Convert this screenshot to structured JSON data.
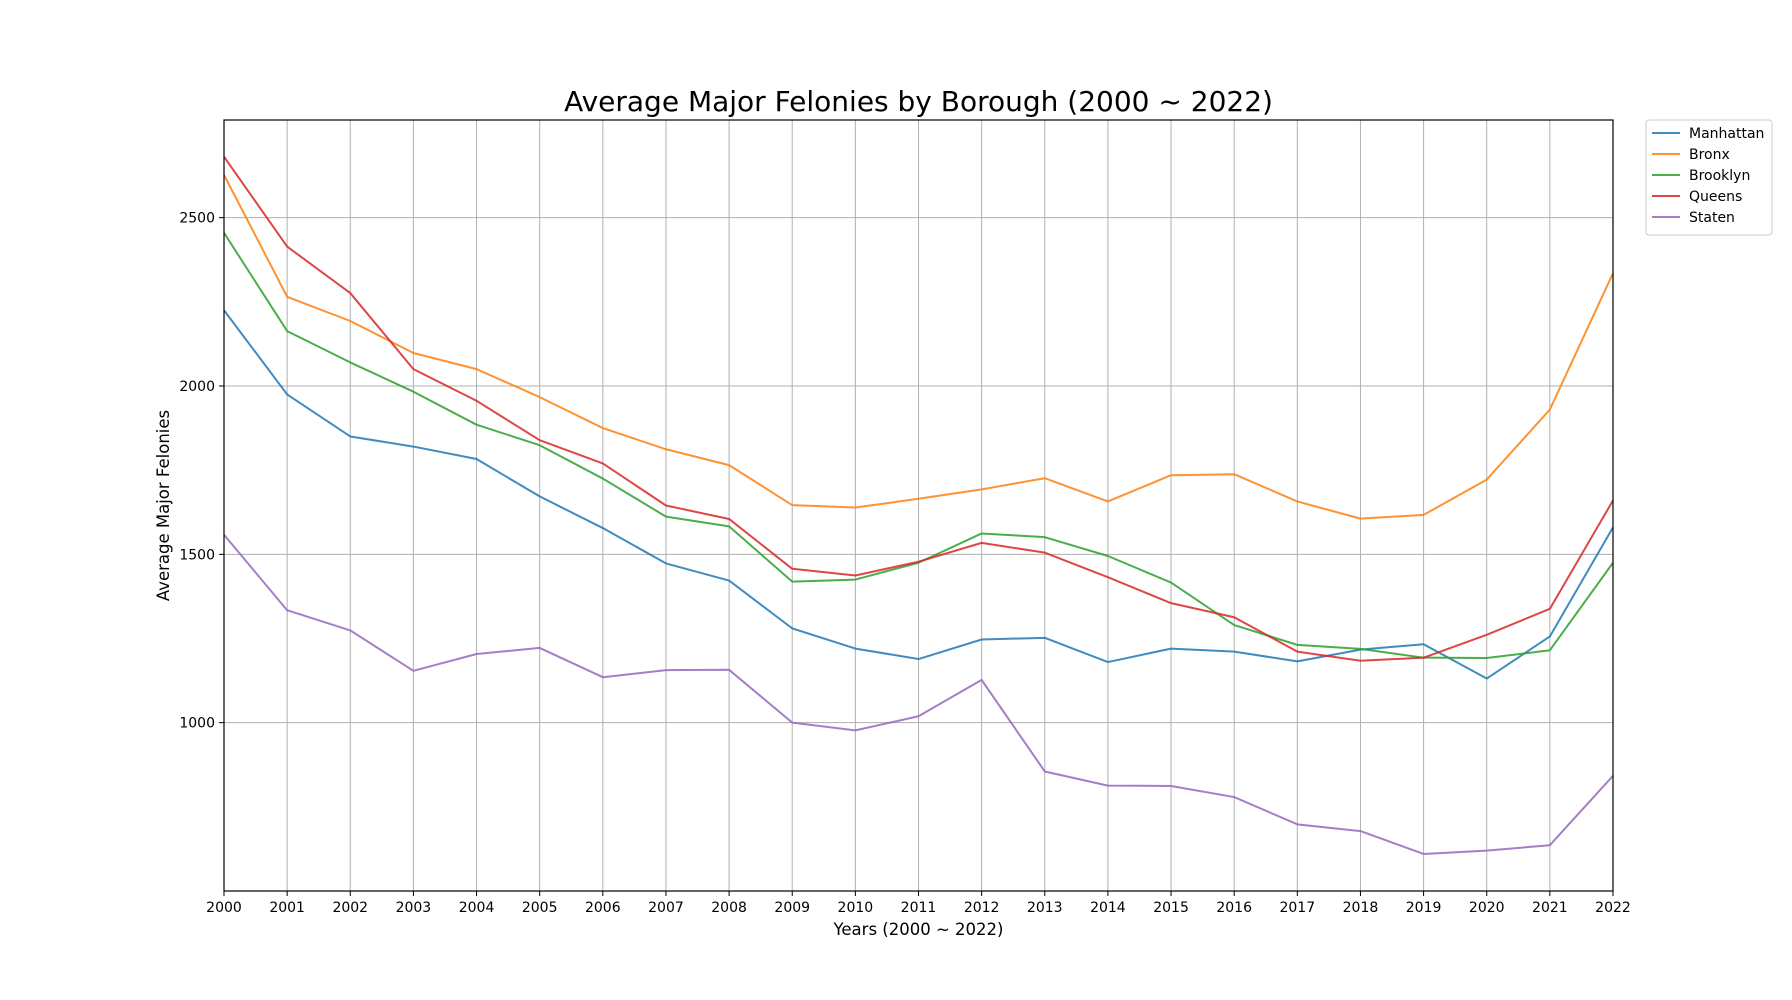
{
  "chart_data": {
    "type": "line",
    "title": "Average Major Felonies by Borough (2000 ~ 2022)",
    "xlabel": "Years (2000 ~ 2022)",
    "ylabel": "Average Major Felonies",
    "x": [
      "2000",
      "2001",
      "2002",
      "2003",
      "2004",
      "2005",
      "2006",
      "2007",
      "2008",
      "2009",
      "2010",
      "2011",
      "2012",
      "2013",
      "2014",
      "2015",
      "2016",
      "2017",
      "2018",
      "2019",
      "2020",
      "2021",
      "2022"
    ],
    "xlim": [
      2000,
      2022
    ],
    "ylim": [
      500,
      2790
    ],
    "yticks": [
      1000,
      1500,
      2000,
      2500
    ],
    "grid": true,
    "legend": "outside-top-right",
    "series": [
      {
        "name": "Manhattan",
        "color": "#1f77b4",
        "values": [
          2225,
          1975,
          1850,
          1820,
          1783,
          1672,
          1578,
          1473,
          1422,
          1280,
          1220,
          1189,
          1247,
          1252,
          1180,
          1220,
          1211,
          1182,
          1217,
          1233,
          1131,
          1256,
          1580
        ]
      },
      {
        "name": "Bronx",
        "color": "#ff7f0e",
        "values": [
          2627,
          2265,
          2193,
          2098,
          2050,
          1967,
          1875,
          1812,
          1765,
          1646,
          1639,
          1665,
          1693,
          1726,
          1657,
          1735,
          1738,
          1657,
          1606,
          1617,
          1722,
          1930,
          2335
        ]
      },
      {
        "name": "Brooklyn",
        "color": "#2ca02c",
        "values": [
          2455,
          2163,
          2070,
          1983,
          1885,
          1824,
          1725,
          1612,
          1583,
          1419,
          1425,
          1475,
          1562,
          1551,
          1495,
          1416,
          1290,
          1231,
          1219,
          1193,
          1192,
          1215,
          1475
        ]
      },
      {
        "name": "Queens",
        "color": "#d62728",
        "values": [
          2681,
          2414,
          2276,
          2050,
          1956,
          1839,
          1770,
          1645,
          1605,
          1457,
          1437,
          1478,
          1534,
          1505,
          1432,
          1355,
          1313,
          1211,
          1184,
          1193,
          1261,
          1338,
          1660
        ]
      },
      {
        "name": "Staten",
        "color": "#9467bd",
        "values": [
          1558,
          1334,
          1274,
          1154,
          1204,
          1222,
          1135,
          1156,
          1157,
          1000,
          977,
          1019,
          1127,
          855,
          813,
          812,
          779,
          698,
          678,
          610,
          620,
          636,
          842
        ]
      }
    ]
  }
}
